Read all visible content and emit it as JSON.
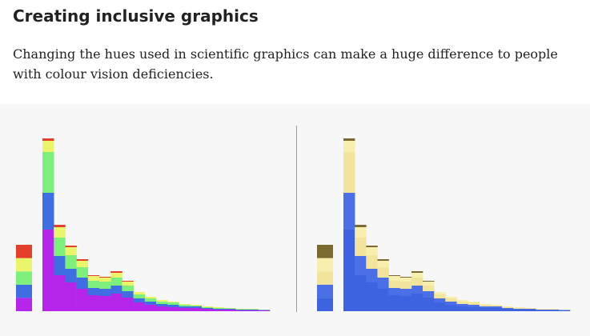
{
  "header": {
    "title": "Creating inclusive graphics",
    "subtitle": "Changing the hues used in scientific graphics can make a huge difference to people with colour vision deficiencies."
  },
  "chart_data": [
    {
      "type": "bar",
      "stacked": true,
      "ylim": [
        0,
        216
      ],
      "categories": [
        null,
        null,
        null,
        null,
        null,
        null,
        null,
        null,
        null,
        null,
        null,
        null,
        null,
        null,
        null,
        null,
        null,
        null,
        null,
        null
      ],
      "series": [
        {
          "color": "#b526ea",
          "values": [
            102,
            45,
            36,
            28,
            20,
            19,
            22,
            17,
            11,
            8,
            6,
            5,
            4,
            4,
            3,
            2,
            2,
            1,
            1,
            1
          ]
        },
        {
          "color": "#3f6de2",
          "values": [
            46,
            24,
            17,
            14,
            9,
            9,
            10,
            8,
            5,
            4,
            3,
            3,
            2,
            2,
            1,
            1,
            1,
            1,
            1,
            0.5
          ]
        },
        {
          "color": "#7def7c",
          "values": [
            51,
            23,
            17,
            13,
            9,
            9,
            10,
            7,
            5,
            4,
            3,
            3,
            2,
            1,
            1,
            1,
            0.5,
            0.5,
            0.5,
            0.3
          ]
        },
        {
          "color": "#eaf56c",
          "values": [
            14,
            13,
            10,
            8,
            6,
            5,
            6,
            5,
            3,
            2,
            2,
            1,
            1,
            1,
            1,
            1,
            0.5,
            0.5,
            0.5,
            0.2
          ]
        },
        {
          "color": "#e2402a",
          "values": [
            3,
            3,
            2,
            2,
            1,
            1,
            2,
            1,
            0,
            0,
            0,
            0,
            0,
            0,
            0,
            0,
            0,
            0,
            0,
            0
          ]
        }
      ]
    },
    {
      "type": "bar",
      "stacked": true,
      "ylim": [
        0,
        216
      ],
      "categories": [
        null,
        null,
        null,
        null,
        null,
        null,
        null,
        null,
        null,
        null,
        null,
        null,
        null,
        null,
        null,
        null,
        null,
        null,
        null,
        null
      ],
      "series": [
        {
          "color": "#3d63e0",
          "values": [
            102,
            45,
            36,
            28,
            20,
            19,
            22,
            17,
            11,
            8,
            6,
            5,
            4,
            4,
            3,
            2,
            2,
            1,
            1,
            1
          ]
        },
        {
          "color": "#4a6fe6",
          "values": [
            46,
            24,
            17,
            14,
            9,
            9,
            10,
            8,
            5,
            4,
            3,
            3,
            2,
            2,
            1,
            1,
            1,
            1,
            1,
            0.5
          ]
        },
        {
          "color": "#f3e49c",
          "values": [
            51,
            23,
            17,
            13,
            9,
            9,
            10,
            7,
            5,
            4,
            3,
            3,
            2,
            1,
            1,
            1,
            0.5,
            0.5,
            0.5,
            0.3
          ]
        },
        {
          "color": "#f8eeae",
          "values": [
            14,
            13,
            10,
            8,
            6,
            5,
            6,
            5,
            3,
            2,
            2,
            1,
            1,
            1,
            1,
            1,
            0.5,
            0.5,
            0.5,
            0.2
          ]
        },
        {
          "color": "#7a6a30",
          "values": [
            3,
            3,
            2,
            2,
            1,
            1,
            2,
            1,
            0,
            0,
            0,
            0,
            0,
            0,
            0,
            0,
            0,
            0,
            0,
            0
          ]
        }
      ]
    }
  ]
}
